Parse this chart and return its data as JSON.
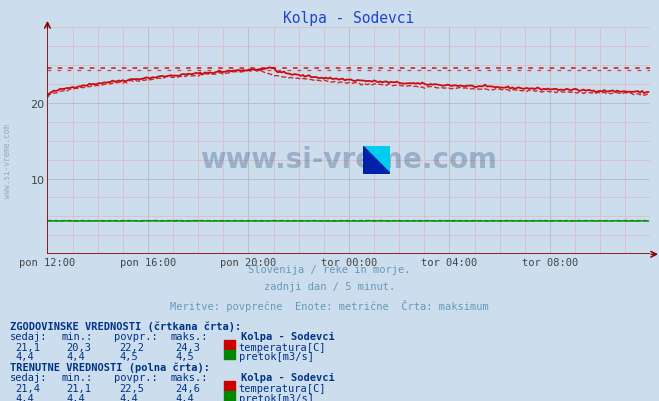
{
  "title": "Kolpa - Sodevci",
  "bg_color": "#ccdded",
  "plot_bg_color": "#ccdded",
  "title_color": "#2244cc",
  "axis_color": "#880000",
  "temp_color": "#cc0000",
  "flow_color": "#008800",
  "watermark_color": "#1a3a6a",
  "table_color": "#003388",
  "subtitle_color": "#6699bb",
  "x_tick_labels": [
    "pon 12:00",
    "pon 16:00",
    "pon 20:00",
    "tor 00:00",
    "tor 04:00",
    "tor 08:00"
  ],
  "x_tick_positions": [
    0,
    48,
    96,
    144,
    192,
    240
  ],
  "n_points": 288,
  "y_min": 0,
  "y_max": 30,
  "y_ticks": [
    10,
    20
  ],
  "temp_max_solid": 24.6,
  "temp_max_dashed": 24.3,
  "subtitle1": "Slovenija / reke in morje.",
  "subtitle2": "zadnji dan / 5 minut.",
  "subtitle3": "Meritve: povprečne  Enote: metrične  Črta: maksimum",
  "hist_label": "ZGODOVINSKE VREDNOSTI (črtkana črta):",
  "curr_label": "TRENUTNE VREDNOSTI (polna črta):",
  "station": "Kolpa - Sodevci",
  "hist_temp": [
    "21,1",
    "20,3",
    "22,2",
    "24,3"
  ],
  "hist_flow": [
    "4,4",
    "4,4",
    "4,5",
    "4,5"
  ],
  "curr_temp": [
    "21,4",
    "21,1",
    "22,5",
    "24,6"
  ],
  "curr_flow": [
    "4,4",
    "4,4",
    "4,4",
    "4,4"
  ],
  "temp_label": "temperatura[C]",
  "flow_label": "pretok[m3/s]",
  "col_headers": [
    "sedaj:",
    "min.:",
    "povpr.:",
    "maks.:"
  ]
}
